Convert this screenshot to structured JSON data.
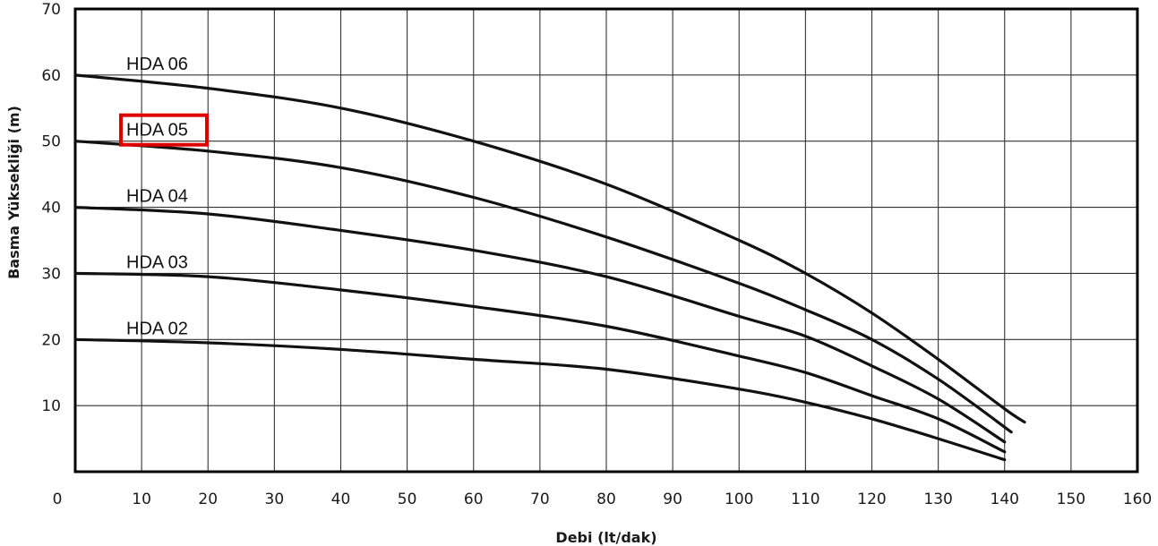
{
  "chart_data": {
    "type": "line",
    "title": "",
    "xlabel": "Debi (lt/dak)",
    "ylabel": "Basma Yüksekliği (m)",
    "xlim": [
      0,
      160
    ],
    "ylim": [
      0,
      70
    ],
    "x_ticks": [
      "0",
      "10",
      "20",
      "30",
      "40",
      "50",
      "60",
      "70",
      "80",
      "90",
      "100",
      "110",
      "120",
      "130",
      "140",
      "150",
      "160"
    ],
    "y_ticks": [
      "10",
      "20",
      "30",
      "40",
      "50",
      "60",
      "70"
    ],
    "grid": true,
    "highlighted_series": "HDA 05",
    "highlight_color": "#e00000",
    "series": [
      {
        "name": "HDA 06",
        "x": [
          0,
          20,
          40,
          60,
          80,
          100,
          110,
          120,
          130,
          140,
          143
        ],
        "y": [
          60,
          58,
          55,
          50,
          43.5,
          35,
          30,
          24,
          17,
          9.5,
          7.5
        ]
      },
      {
        "name": "HDA 05",
        "x": [
          0,
          20,
          40,
          60,
          80,
          100,
          110,
          120,
          130,
          141
        ],
        "y": [
          50,
          48.5,
          46,
          41.5,
          35.5,
          28.5,
          24.5,
          20,
          14,
          6
        ]
      },
      {
        "name": "HDA 04",
        "x": [
          0,
          20,
          40,
          60,
          80,
          100,
          110,
          120,
          130,
          140
        ],
        "y": [
          40,
          39,
          36.5,
          33.5,
          29.5,
          23.5,
          20.5,
          16,
          11,
          4.5
        ]
      },
      {
        "name": "HDA 03",
        "x": [
          0,
          20,
          40,
          60,
          80,
          100,
          110,
          120,
          130,
          140
        ],
        "y": [
          30,
          29.5,
          27.5,
          25,
          22,
          17.5,
          15,
          11.5,
          8,
          3
        ]
      },
      {
        "name": "HDA 02",
        "x": [
          0,
          20,
          40,
          60,
          80,
          100,
          110,
          120,
          130,
          140
        ],
        "y": [
          20,
          19.5,
          18.5,
          17,
          15.5,
          12.5,
          10.5,
          8,
          5,
          1.8
        ]
      }
    ]
  }
}
